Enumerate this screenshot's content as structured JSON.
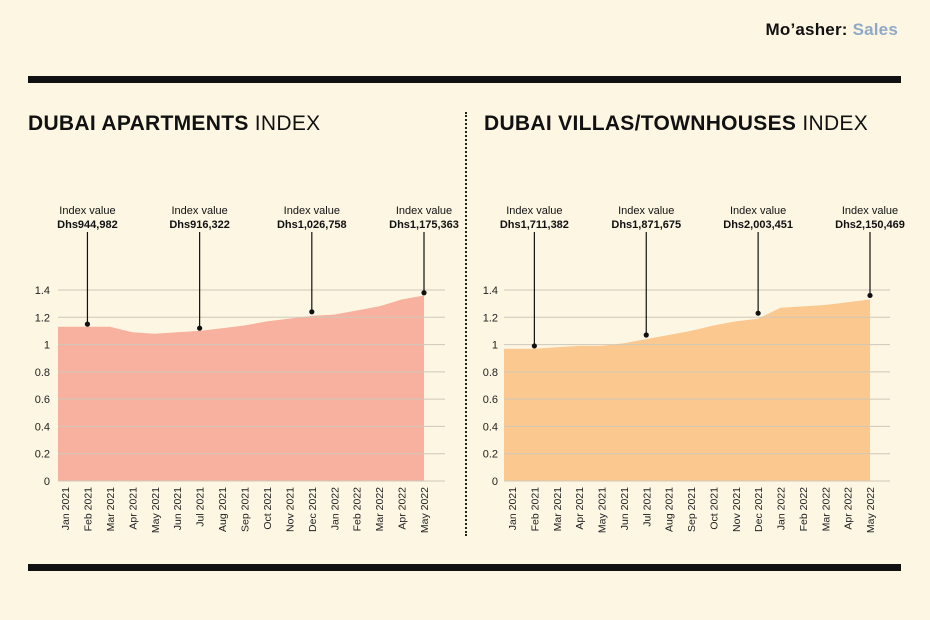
{
  "brand": {
    "name": "Mo’asher:",
    "section": "Sales"
  },
  "titles": {
    "left_bold": "DUBAI APARTMENTS",
    "left_light": "INDEX",
    "right_bold": "DUBAI VILLAS/TOWNHOUSES",
    "right_light": "INDEX"
  },
  "colors": {
    "apartments": "#f8b09f",
    "villas": "#fbc88f",
    "rule": "#111111",
    "brand_accent": "#8fa9c8"
  },
  "chart_data": [
    {
      "type": "area",
      "title": "DUBAI APARTMENTS INDEX",
      "categories": [
        "Jan 2021",
        "Feb 2021",
        "Mar 2021",
        "Apr 2021",
        "May 2021",
        "Jun 2021",
        "Jul 2021",
        "Aug 2021",
        "Sep 2021",
        "Oct 2021",
        "Nov 2021",
        "Dec 2021",
        "Jan 2022",
        "Feb 2022",
        "Mar 2022",
        "Apr 2022",
        "May 2022"
      ],
      "values": [
        1.13,
        1.13,
        1.13,
        1.09,
        1.08,
        1.09,
        1.1,
        1.12,
        1.14,
        1.17,
        1.19,
        1.21,
        1.22,
        1.25,
        1.28,
        1.33,
        1.36
      ],
      "yticks": [
        0,
        0.2,
        0.4,
        0.6,
        0.8,
        1,
        1.2,
        1.4
      ],
      "ylim": [
        0,
        1.4
      ],
      "grid": "horizontal",
      "annotations": [
        {
          "index": 1,
          "y": 1.15,
          "label": "Index value",
          "value": "Dhs944,982"
        },
        {
          "index": 6,
          "y": 1.12,
          "label": "Index value",
          "value": "Dhs916,322"
        },
        {
          "index": 11,
          "y": 1.24,
          "label": "Index value",
          "value": "Dhs1,026,758"
        },
        {
          "index": 16,
          "y": 1.38,
          "label": "Index value",
          "value": "Dhs1,175,363"
        }
      ]
    },
    {
      "type": "area",
      "title": "DUBAI VILLAS/TOWNHOUSES INDEX",
      "categories": [
        "Jan 2021",
        "Feb 2021",
        "Mar 2021",
        "Apr 2021",
        "May 2021",
        "Jun 2021",
        "Jul 2021",
        "Aug 2021",
        "Sep 2021",
        "Oct 2021",
        "Nov 2021",
        "Dec 2021",
        "Jan 2022",
        "Feb 2022",
        "Mar 2022",
        "Apr 2022",
        "May 2022"
      ],
      "values": [
        0.97,
        0.97,
        0.98,
        0.99,
        0.99,
        1.01,
        1.04,
        1.07,
        1.1,
        1.14,
        1.17,
        1.19,
        1.27,
        1.28,
        1.29,
        1.31,
        1.33
      ],
      "yticks": [
        0,
        0.2,
        0.4,
        0.6,
        0.8,
        1,
        1.2,
        1.4
      ],
      "ylim": [
        0,
        1.4
      ],
      "grid": "horizontal",
      "annotations": [
        {
          "index": 1,
          "y": 0.99,
          "label": "Index value",
          "value": "Dhs1,711,382"
        },
        {
          "index": 6,
          "y": 1.07,
          "label": "Index value",
          "value": "Dhs1,871,675"
        },
        {
          "index": 11,
          "y": 1.23,
          "label": "Index value",
          "value": "Dhs2,003,451"
        },
        {
          "index": 16,
          "y": 1.36,
          "label": "Index value",
          "value": "Dhs2,150,469"
        }
      ]
    }
  ]
}
